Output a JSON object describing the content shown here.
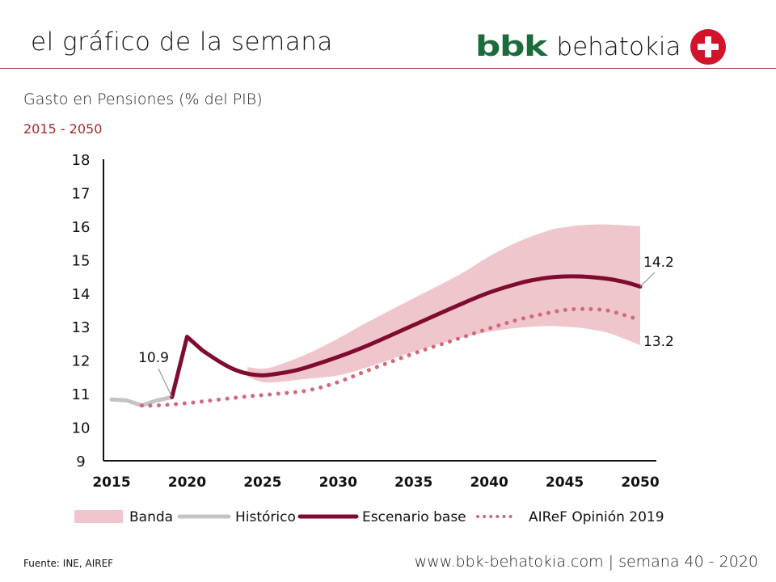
{
  "header": {
    "title": "el gráfico de la semana",
    "logo": {
      "brand": "bbk",
      "name": "behatokia",
      "icon": "plus-circle-icon",
      "brand_color": "#1c6b3a",
      "icon_color": "#d2142a"
    },
    "rule_color": "#a8282b"
  },
  "chart_header": {
    "subtitle": "Gasto en Pensiones (% del PIB)",
    "period": "2015 - 2050"
  },
  "chart_data": {
    "type": "line",
    "title": "Gasto en Pensiones (% del PIB)",
    "subtitle": "2015 - 2050",
    "xlabel": "",
    "ylabel": "",
    "xlim": [
      2015,
      2050
    ],
    "ylim": [
      9,
      18
    ],
    "x_ticks": [
      "2015",
      "2020",
      "2025",
      "2030",
      "2035",
      "2040",
      "2045",
      "2050"
    ],
    "y_ticks": [
      "9",
      "10",
      "11",
      "12",
      "13",
      "14",
      "15",
      "16",
      "17",
      "18"
    ],
    "grid": false,
    "legend_position": "bottom",
    "colors": {
      "banda": "#f0c6cd",
      "historico": "#c4c4c4",
      "escenario_base": "#7f0b2e",
      "airef": "#cf6a7b"
    },
    "band": {
      "name": "Banda",
      "x": [
        2024,
        2025,
        2026,
        2028,
        2030,
        2032,
        2035,
        2038,
        2040,
        2042,
        2044,
        2045,
        2046,
        2047,
        2048,
        2050
      ],
      "upper": [
        11.8,
        11.75,
        11.85,
        12.2,
        12.65,
        13.15,
        13.85,
        14.55,
        15.1,
        15.55,
        15.88,
        15.97,
        16.03,
        16.05,
        16.05,
        16.0
      ],
      "lower": [
        11.5,
        11.35,
        11.35,
        11.45,
        11.55,
        11.8,
        12.25,
        12.65,
        12.85,
        12.97,
        13.02,
        13.0,
        12.97,
        12.9,
        12.8,
        12.45
      ]
    },
    "series": [
      {
        "name": "Histórico",
        "style": "solid-light",
        "x": [
          2015,
          2016,
          2017,
          2018,
          2019
        ],
        "values": [
          10.83,
          10.8,
          10.65,
          10.8,
          10.9
        ]
      },
      {
        "name": "Escenario base",
        "style": "solid-bold",
        "x": [
          2019,
          2020,
          2021,
          2022,
          2023,
          2024,
          2025,
          2026,
          2027,
          2028,
          2030,
          2032,
          2035,
          2038,
          2040,
          2042,
          2043,
          2044,
          2045,
          2046,
          2047,
          2048,
          2049,
          2050
        ],
        "values": [
          10.9,
          12.7,
          12.3,
          12.0,
          11.75,
          11.6,
          11.55,
          11.6,
          11.68,
          11.8,
          12.1,
          12.45,
          13.05,
          13.65,
          14.02,
          14.3,
          14.4,
          14.47,
          14.5,
          14.5,
          14.47,
          14.42,
          14.33,
          14.2
        ]
      },
      {
        "name": "AIReF Opinión 2019",
        "style": "dotted",
        "x": [
          2017,
          2018,
          2020,
          2022,
          2024,
          2025,
          2026,
          2028,
          2030,
          2032,
          2035,
          2038,
          2040,
          2042,
          2044,
          2045,
          2046,
          2047,
          2048,
          2050
        ],
        "values": [
          10.65,
          10.65,
          10.72,
          10.82,
          10.92,
          10.96,
          11.0,
          11.1,
          11.35,
          11.7,
          12.2,
          12.65,
          12.95,
          13.22,
          13.42,
          13.5,
          13.53,
          13.52,
          13.47,
          13.2
        ]
      }
    ],
    "annotations": [
      {
        "text": "10.9",
        "x": 2019,
        "y": 10.9,
        "series": "Histórico"
      },
      {
        "text": "14.2",
        "x": 2050,
        "y": 14.2,
        "series": "Escenario base"
      },
      {
        "text": "13.2",
        "x": 2050,
        "y": 13.2,
        "series": "AIReF Opinión 2019"
      }
    ],
    "legend": [
      "Banda",
      "Histórico",
      "Escenario base",
      "AIReF Opinión 2019"
    ]
  },
  "footer": {
    "source": "Fuente:  INE, AIREF",
    "site": "www.bbk-behatokia.com | semana 40 - 2020"
  }
}
